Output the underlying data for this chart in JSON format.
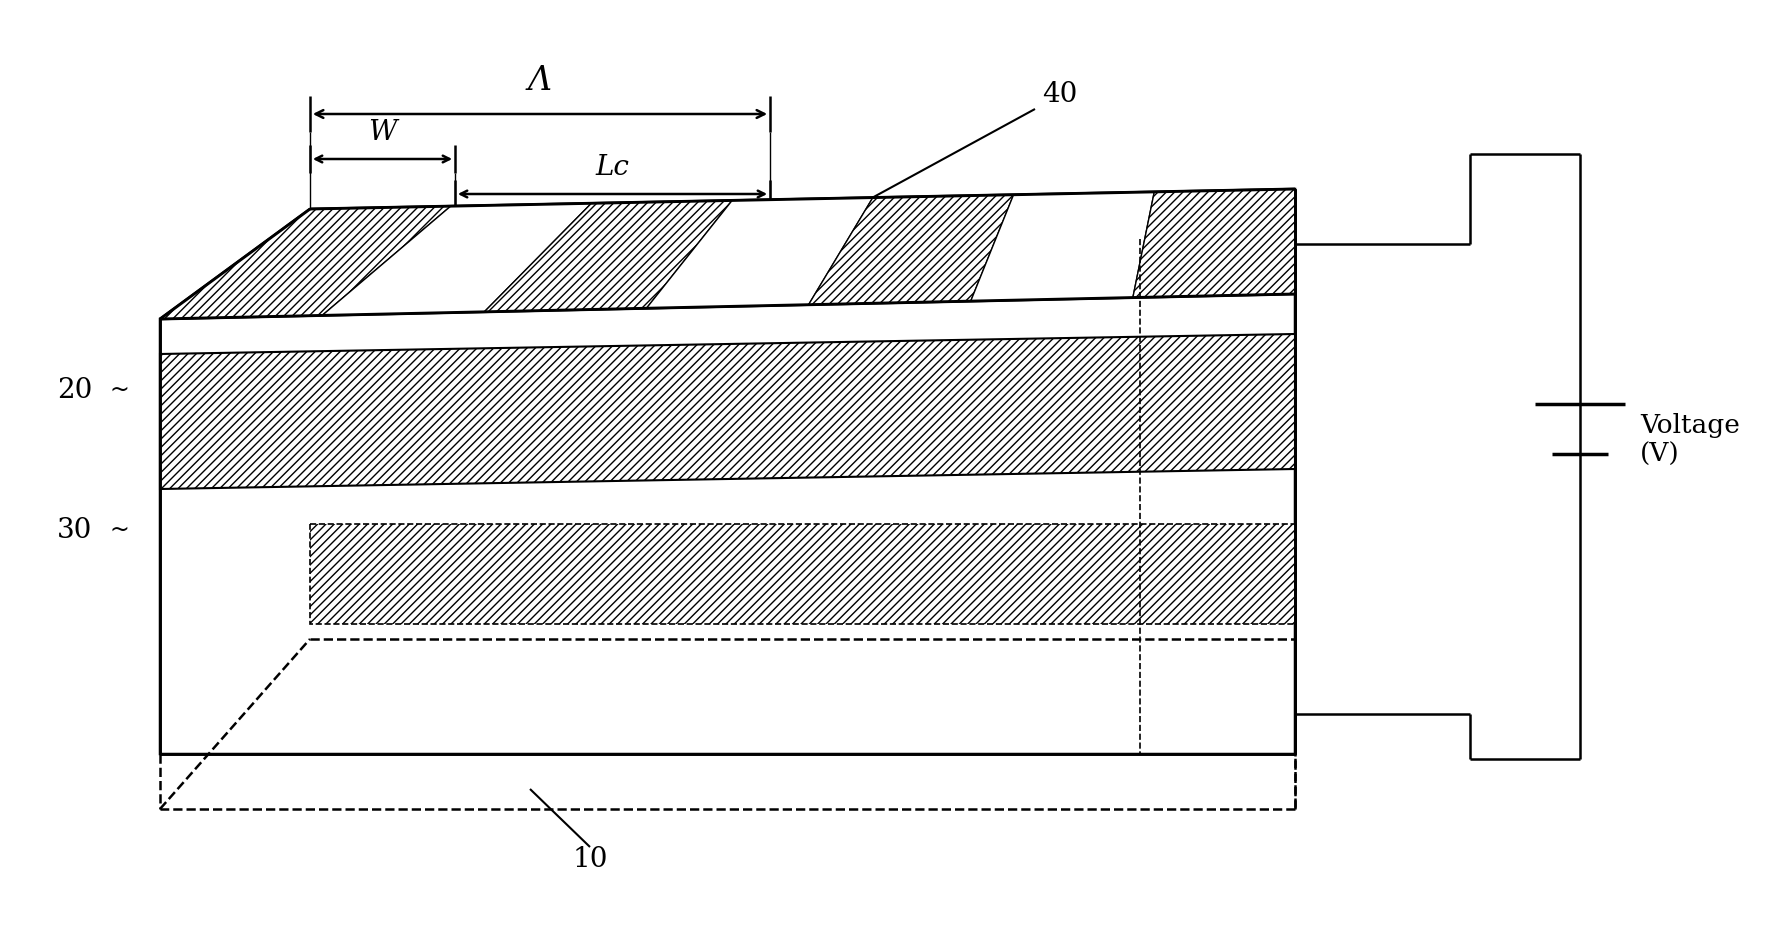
{
  "bg_color": "#ffffff",
  "line_color": "#000000",
  "fig_width": 17.7,
  "fig_height": 9.28,
  "dpi": 100,
  "labels": {
    "lambda": "Λ",
    "W": "W",
    "Lc": "Lc",
    "num_10": "10",
    "num_20": "20",
    "num_30": "30",
    "num_40": "40",
    "voltage": "Voltage\n(V)"
  }
}
